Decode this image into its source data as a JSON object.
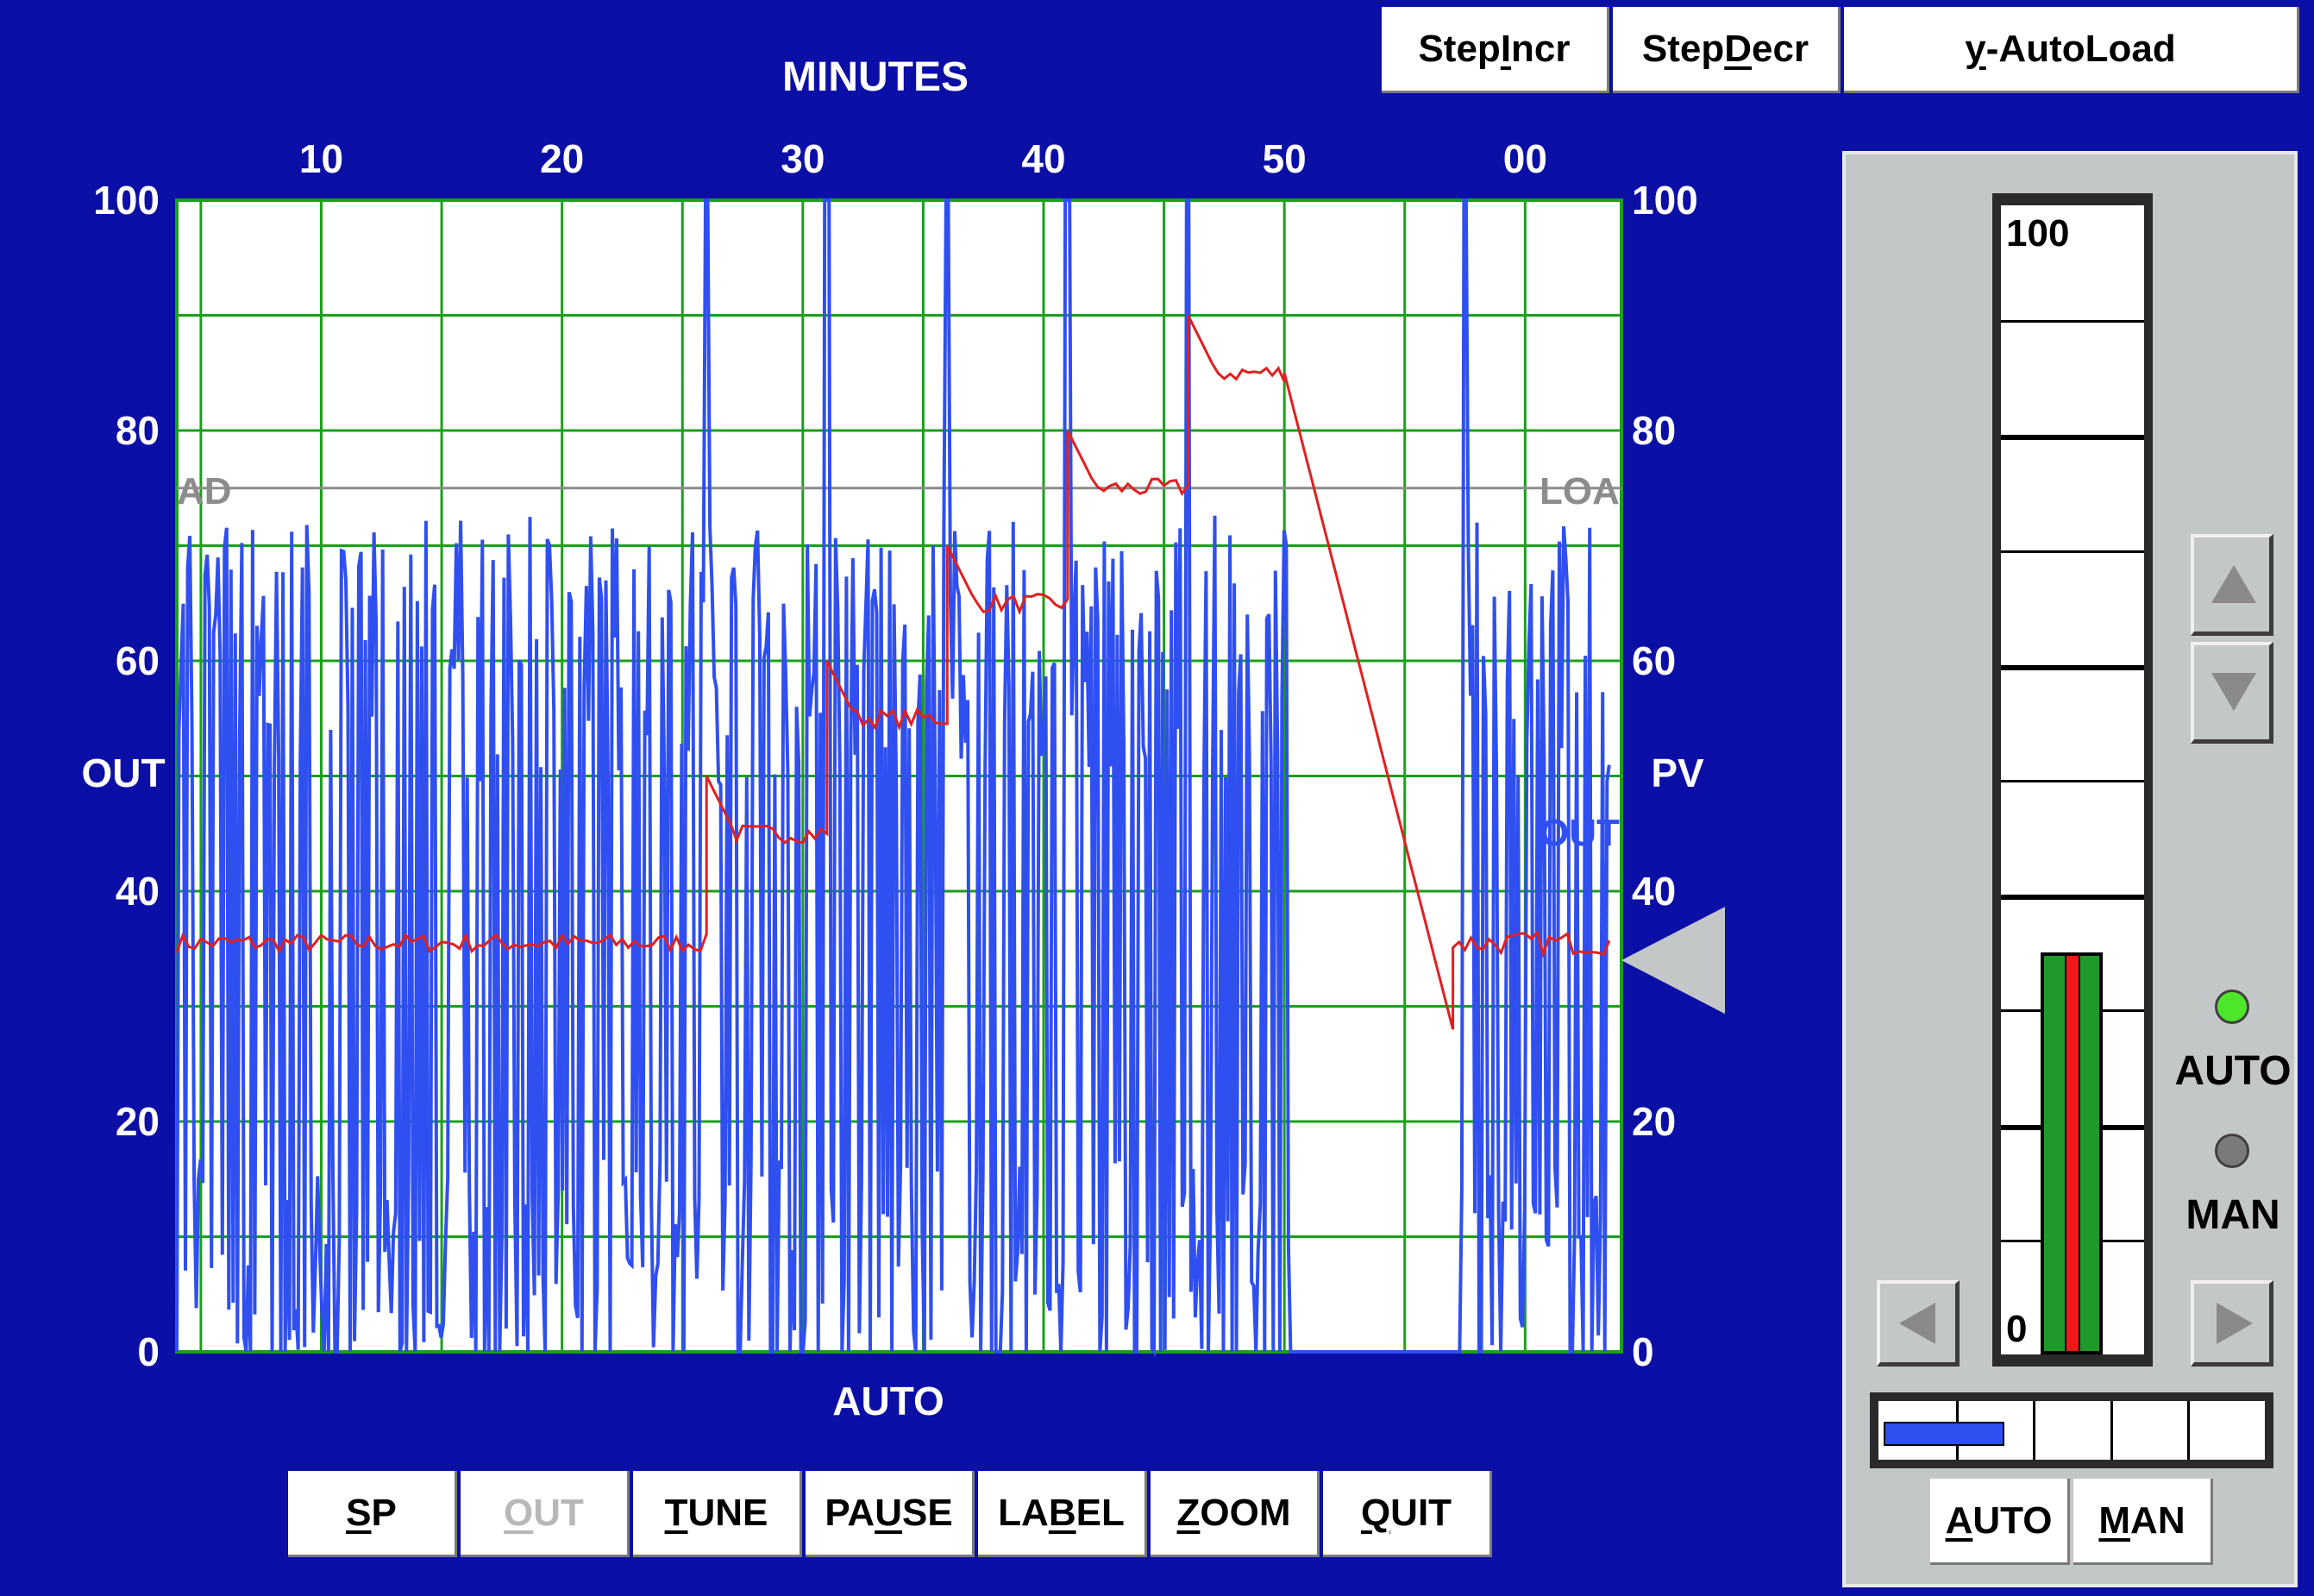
{
  "toolbar_top": {
    "step_incr": {
      "pre": "Step",
      "ul": "I",
      "post": "ncr"
    },
    "step_decr": {
      "pre": "Step",
      "ul": "D",
      "post": "ecr"
    },
    "auto_load": {
      "pre": "",
      "ul": "y",
      "post": "-AutoLoad"
    }
  },
  "chart": {
    "top_axis_title": "MINUTES",
    "top_ticks": [
      "10",
      "20",
      "30",
      "40",
      "50",
      "00"
    ],
    "left_ticks": [
      "100",
      "80",
      "60",
      "40",
      "20",
      "0"
    ],
    "right_ticks": [
      "100",
      "80",
      "60",
      "40",
      "20",
      "0"
    ],
    "left_label": "OUT",
    "right_label": "PV",
    "load_label_left": "AD",
    "load_label_right": "LOA",
    "out_trace_label": "OUT",
    "mode_label": "AUTO"
  },
  "chart_data": {
    "type": "line",
    "x_range_minutes": [
      4,
      64
    ],
    "ylim": [
      0,
      100
    ],
    "load_level": 75,
    "colors": {
      "out": "#2f4ff0",
      "pv": "#e02020",
      "grid": "#1aa01a",
      "load": "#8c8c8c"
    },
    "pv_steps": [
      {
        "x": [
          4,
          26
        ],
        "y": 35.5
      },
      {
        "x": [
          26,
          31
        ],
        "y": 45
      },
      {
        "x": [
          31,
          36
        ],
        "y": 55
      },
      {
        "x": [
          36,
          41
        ],
        "y": 65
      },
      {
        "x": [
          41,
          46
        ],
        "y": 75
      },
      {
        "x": [
          46,
          50
        ],
        "y": 85
      }
    ],
    "pv_ramp": {
      "x": [
        50,
        57
      ],
      "y": [
        85,
        28
      ]
    },
    "pv_after": {
      "x": [
        57,
        63.5
      ],
      "y": 35.5
    },
    "setpoint": 34
  },
  "bottom_toolbar": [
    {
      "pre": "",
      "ul": "S",
      "post": "P",
      "disabled": false
    },
    {
      "pre": "",
      "ul": "O",
      "post": "UT",
      "disabled": true
    },
    {
      "pre": "",
      "ul": "T",
      "post": "UNE",
      "disabled": false
    },
    {
      "pre": "PA",
      "ul": "U",
      "post": "SE",
      "disabled": false
    },
    {
      "pre": "LA",
      "ul": "B",
      "post": "EL",
      "disabled": false
    },
    {
      "pre": "",
      "ul": "Z",
      "post": "OOM",
      "disabled": false
    },
    {
      "pre": "",
      "ul": "Q",
      "post": "UIT",
      "disabled": false
    }
  ],
  "faceplate": {
    "bar_top": "100",
    "bar_bottom": "0",
    "pv_bar_value": 35,
    "output_fraction": 0.32,
    "auto_label": "AUTO",
    "man_label": "MAN",
    "auto_led_color": "#4ee62a",
    "man_led_color": "#7a7a7a",
    "auto_button": {
      "pre": "",
      "ul": "A",
      "post": "UTO"
    },
    "man_button": {
      "pre": "",
      "ul": "M",
      "post": "AN"
    }
  }
}
